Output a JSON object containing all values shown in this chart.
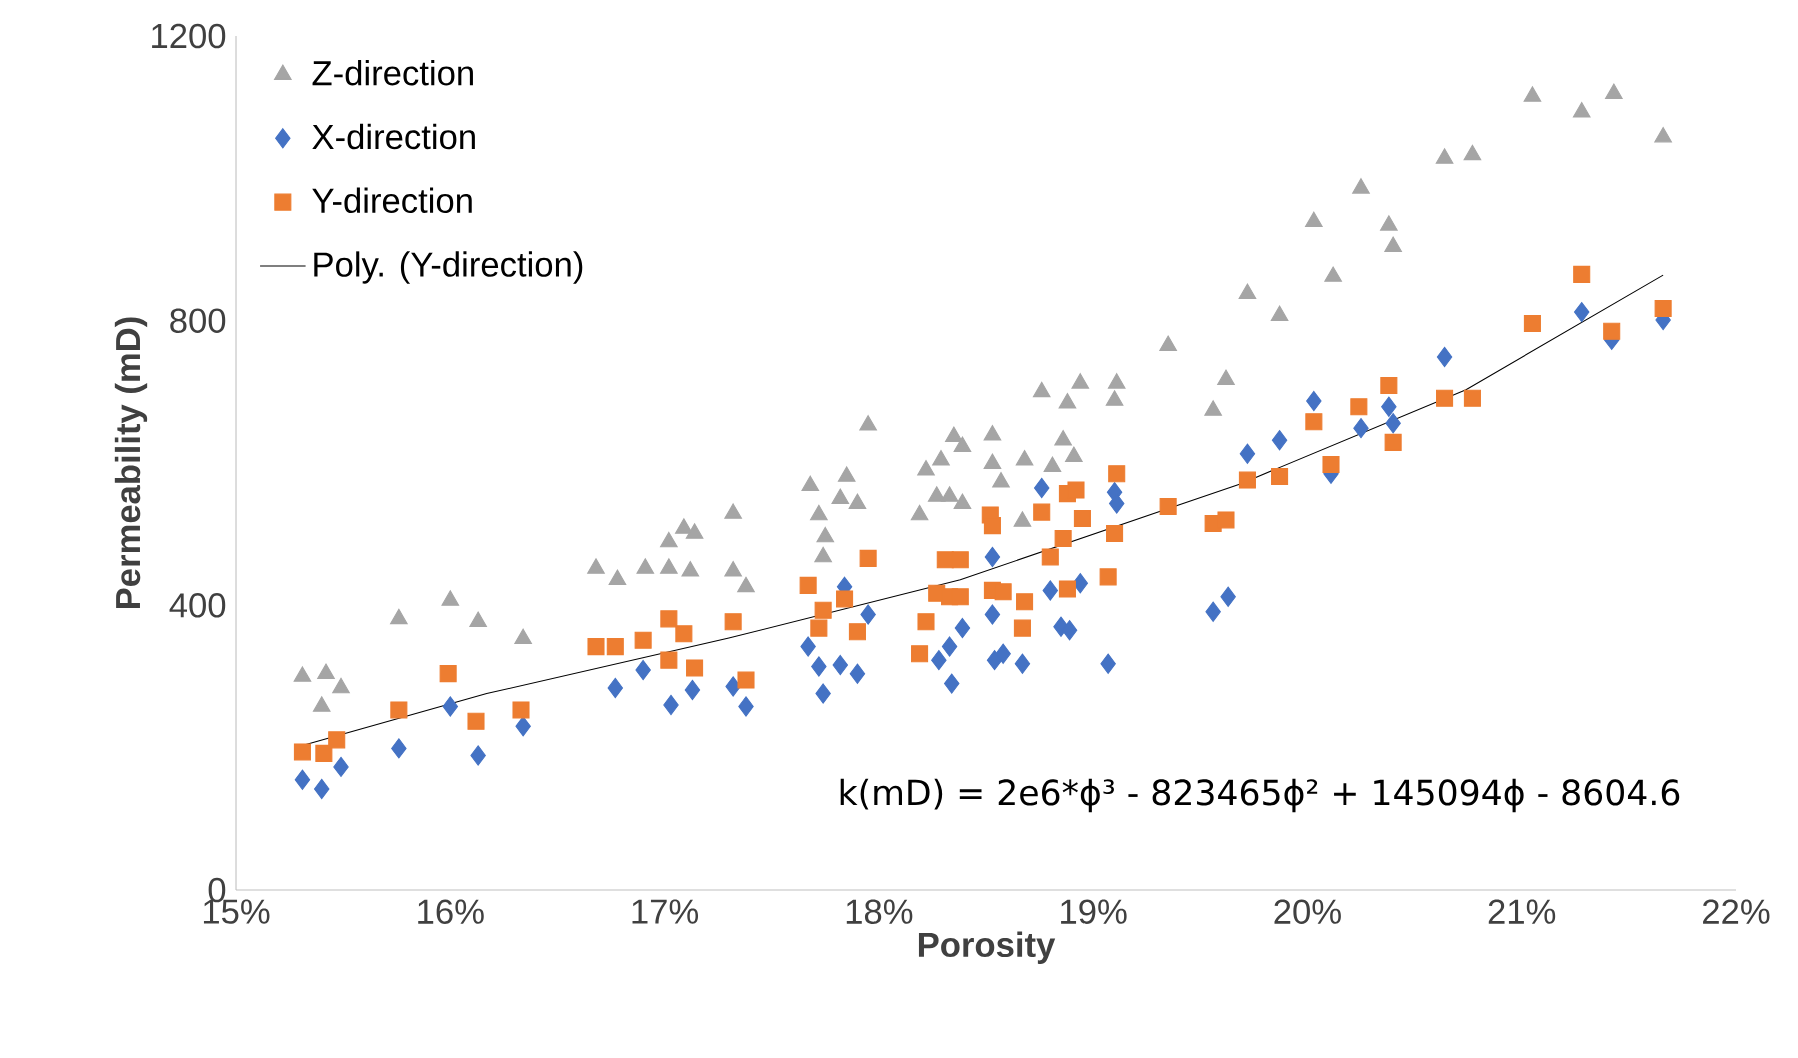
{
  "chart_data": {
    "type": "scatter",
    "xlabel": "Porosity",
    "ylabel": "Permeability (mD)",
    "xlim": [
      15,
      22
    ],
    "ylim": [
      0,
      1200
    ],
    "xticks": [
      {
        "value": 15,
        "label": "15%"
      },
      {
        "value": 16,
        "label": "16%"
      },
      {
        "value": 17,
        "label": "17%"
      },
      {
        "value": 18,
        "label": "18%"
      },
      {
        "value": 19,
        "label": "19%"
      },
      {
        "value": 20,
        "label": "20%"
      },
      {
        "value": 21,
        "label": "21%"
      },
      {
        "value": 22,
        "label": "22%"
      }
    ],
    "yticks": [
      0,
      400,
      800,
      1200
    ],
    "legend": "top left",
    "annotations": [
      "k(mD) = 2e6*ϕ³ - 823465ϕ² + 145094ϕ - 8604.6"
    ],
    "series": [
      {
        "name": "Z-direction",
        "color": "#a5a5a5",
        "marker": "triangle",
        "x": [
          15.31,
          15.42,
          15.49,
          15.4,
          15.76,
          16.0,
          16.13,
          16.34,
          16.68,
          16.78,
          16.91,
          17.02,
          17.12,
          17.02,
          17.09,
          17.14,
          17.32,
          17.32,
          17.38,
          17.68,
          17.72,
          17.75,
          17.74,
          17.85,
          17.82,
          17.9,
          17.95,
          18.19,
          18.22,
          18.29,
          18.35,
          18.39,
          18.27,
          18.33,
          18.39,
          18.53,
          18.53,
          18.57,
          18.68,
          18.67,
          18.76,
          18.86,
          18.88,
          18.94,
          19.11,
          19.1,
          18.81,
          18.91,
          19.35,
          19.56,
          19.62,
          19.72,
          19.87,
          20.03,
          20.12,
          20.25,
          20.38,
          20.4,
          20.64,
          20.77,
          21.05,
          21.28,
          21.43,
          21.66
        ],
        "values": [
          300,
          304,
          284,
          258,
          381,
          407,
          377,
          353,
          452,
          436,
          452,
          452,
          448,
          489,
          508,
          501,
          529,
          448,
          426,
          568,
          527,
          496,
          468,
          581,
          550,
          543,
          653,
          527,
          590,
          604,
          637,
          623,
          553,
          553,
          543,
          639,
          599,
          573,
          604,
          518,
          700,
          632,
          684,
          712,
          712,
          688,
          595,
          609,
          765,
          674,
          717,
          838,
          807,
          939,
          862,
          986,
          934,
          904,
          1028,
          1033,
          1115,
          1093,
          1119,
          1058
        ]
      },
      {
        "name": "X-direction",
        "color": "#4472c4",
        "marker": "diamond",
        "x": [
          15.31,
          15.4,
          15.49,
          15.76,
          16.0,
          16.13,
          16.34,
          16.77,
          16.9,
          17.03,
          17.13,
          17.32,
          17.38,
          17.67,
          17.72,
          17.82,
          17.74,
          17.84,
          17.9,
          17.95,
          18.28,
          18.33,
          18.34,
          18.39,
          18.53,
          18.53,
          18.54,
          18.58,
          18.67,
          18.76,
          18.8,
          18.85,
          18.89,
          18.94,
          19.1,
          19.11,
          19.07,
          19.56,
          19.63,
          19.72,
          19.87,
          20.03,
          20.11,
          20.25,
          20.38,
          20.4,
          20.64,
          21.28,
          21.42,
          21.66
        ],
        "values": [
          155,
          142,
          173,
          199,
          258,
          189,
          230,
          284,
          309,
          260,
          281,
          286,
          258,
          342,
          314,
          316,
          276,
          426,
          304,
          387,
          323,
          342,
          290,
          368,
          387,
          468,
          323,
          332,
          318,
          565,
          421,
          370,
          365,
          431,
          559,
          543,
          318,
          391,
          412,
          613,
          632,
          687,
          585,
          649,
          679,
          656,
          749,
          812,
          773,
          801
        ]
      },
      {
        "name": "Y-direction",
        "color": "#ed7d31",
        "marker": "square",
        "x": [
          15.31,
          15.41,
          15.47,
          15.76,
          15.99,
          16.12,
          16.33,
          16.68,
          16.77,
          16.9,
          17.02,
          17.09,
          17.02,
          17.14,
          17.32,
          17.38,
          17.67,
          17.74,
          17.72,
          17.84,
          17.9,
          17.95,
          18.19,
          18.22,
          18.27,
          18.31,
          18.38,
          18.33,
          18.38,
          18.52,
          18.53,
          18.53,
          18.58,
          18.68,
          18.67,
          18.76,
          18.8,
          18.86,
          18.88,
          18.88,
          18.92,
          18.95,
          19.1,
          19.07,
          19.11,
          19.35,
          19.56,
          19.62,
          19.72,
          19.87,
          20.03,
          20.11,
          20.24,
          20.38,
          20.4,
          20.64,
          20.77,
          21.05,
          21.28,
          21.42,
          21.66
        ],
        "values": [
          194,
          192,
          211,
          253,
          304,
          237,
          253,
          342,
          342,
          351,
          381,
          360,
          323,
          312,
          377,
          295,
          428,
          393,
          368,
          409,
          363,
          466,
          332,
          377,
          417,
          464,
          464,
          412,
          412,
          527,
          512,
          421,
          419,
          405,
          368,
          531,
          468,
          494,
          423,
          557,
          562,
          522,
          501,
          440,
          585,
          539,
          515,
          520,
          576,
          581,
          658,
          598,
          679,
          709,
          629,
          691,
          691,
          796,
          865,
          785,
          817
        ]
      },
      {
        "name": "Poly. (Y-direction)",
        "type": "line",
        "color": "#000000",
        "marker": "none",
        "x": [
          15.31,
          16.17,
          17.3,
          18.38,
          19.69,
          20.74,
          21.66
        ],
        "values": [
          203,
          276,
          354,
          436,
          571,
          703,
          864
        ]
      }
    ]
  }
}
